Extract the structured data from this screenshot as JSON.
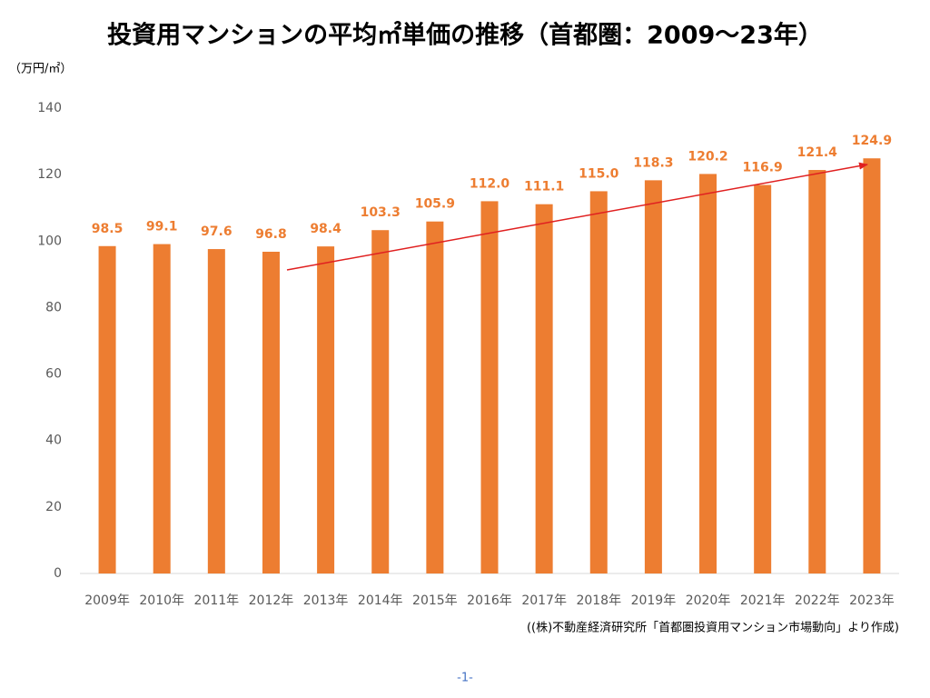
{
  "chart_data": {
    "type": "bar",
    "title": "投資用マンションの平均㎡単価の推移（首都圏：2009～23年）",
    "y_label": "（万円/㎡）",
    "categories": [
      "2009年",
      "2010年",
      "2011年",
      "2012年",
      "2013年",
      "2014年",
      "2015年",
      "2016年",
      "2017年",
      "2018年",
      "2019年",
      "2020年",
      "2021年",
      "2022年",
      "2023年"
    ],
    "values": [
      98.5,
      99.1,
      97.6,
      96.8,
      98.4,
      103.3,
      105.9,
      112.0,
      111.1,
      115.0,
      118.3,
      120.2,
      116.9,
      121.4,
      124.9
    ],
    "value_labels": [
      "98.5",
      "99.1",
      "97.6",
      "96.8",
      "98.4",
      "103.3",
      "105.9",
      "112.0",
      "111.1",
      "115.0",
      "118.3",
      "120.2",
      "116.9",
      "121.4",
      "124.9"
    ],
    "color": "#ed7d31",
    "ylim": [
      0,
      140
    ],
    "yticks": [
      0,
      20,
      40,
      60,
      80,
      100,
      120,
      140
    ],
    "grid": false,
    "source": "((株)不動産経済研究所「首都圏投資用マンション市場動向」より作成)"
  },
  "footer": "-1-"
}
